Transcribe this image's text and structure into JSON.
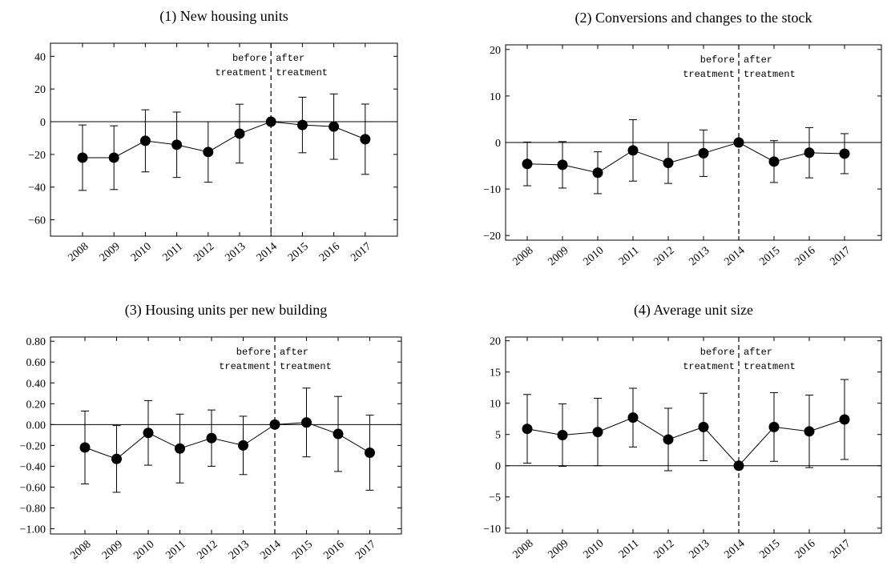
{
  "chart_data": [
    {
      "type": "line",
      "title": "(1) New housing units",
      "categories": [
        "2008",
        "2009",
        "2010",
        "2011",
        "2012",
        "2013",
        "2014",
        "2015",
        "2016",
        "2017"
      ],
      "values": [
        -22,
        -22,
        -11.7,
        -14.1,
        -18.5,
        -7.3,
        0,
        -2,
        -3,
        -10.7
      ],
      "errors": [
        20,
        19.5,
        19,
        20,
        18.5,
        18,
        0,
        17,
        20,
        21.5
      ],
      "ylim": [
        -70,
        48
      ],
      "yticks": [
        {
          "value": -60,
          "label": "−60"
        },
        {
          "value": -40,
          "label": "−40"
        },
        {
          "value": -20,
          "label": "−20"
        },
        0,
        20,
        40
      ],
      "hline": 0,
      "vline": "2014",
      "annotations": {
        "before": [
          "before",
          "treatment"
        ],
        "after": [
          "after",
          "treatment"
        ]
      },
      "color": "#000000"
    },
    {
      "type": "line",
      "title": "(2) Conversions and changes to the stock",
      "categories": [
        "2008",
        "2009",
        "2010",
        "2011",
        "2012",
        "2013",
        "2014",
        "2015",
        "2016",
        "2017"
      ],
      "values": [
        -4.6,
        -4.8,
        -6.5,
        -1.7,
        -4.4,
        -2.3,
        0,
        -4.1,
        -2.2,
        -2.4
      ],
      "errors": [
        4.7,
        5,
        4.5,
        6.6,
        4.4,
        5,
        0,
        4.5,
        5.4,
        4.3
      ],
      "ylim": [
        -21,
        21
      ],
      "yticks": [
        {
          "value": -20,
          "label": "−20"
        },
        {
          "value": -10,
          "label": "−10"
        },
        0,
        10,
        20
      ],
      "hline": 0,
      "vline": "2014",
      "annotations": {
        "before": [
          "before",
          "treatment"
        ],
        "after": [
          "after",
          "treatment"
        ]
      },
      "color": "#000000"
    },
    {
      "type": "line",
      "title": "(3) Housing units per new building",
      "categories": [
        "2008",
        "2009",
        "2010",
        "2011",
        "2012",
        "2013",
        "2014",
        "2015",
        "2016",
        "2017"
      ],
      "values": [
        -0.22,
        -0.33,
        -0.08,
        -0.23,
        -0.13,
        -0.2,
        0,
        0.02,
        -0.09,
        -0.27
      ],
      "errors": [
        0.35,
        0.32,
        0.31,
        0.33,
        0.27,
        0.28,
        0,
        0.33,
        0.36,
        0.36
      ],
      "ylim": [
        -1.05,
        0.84
      ],
      "yticks": [
        {
          "value": -1,
          "label": "−1.00"
        },
        {
          "value": -0.8,
          "label": "−0.80"
        },
        {
          "value": -0.6,
          "label": "−0.60"
        },
        {
          "value": -0.4,
          "label": "−0.40"
        },
        {
          "value": -0.2,
          "label": "−0.20"
        },
        {
          "value": 0,
          "label": "0.00"
        },
        {
          "value": 0.2,
          "label": "0.20"
        },
        {
          "value": 0.4,
          "label": "0.40"
        },
        {
          "value": 0.6,
          "label": "0.60"
        },
        {
          "value": 0.8,
          "label": "0.80"
        }
      ],
      "hline": 0,
      "vline": "2014",
      "annotations": {
        "before": [
          "before",
          "treatment"
        ],
        "after": [
          "after",
          "treatment"
        ]
      },
      "color": "#000000"
    },
    {
      "type": "line",
      "title": "(4) Average unit size",
      "categories": [
        "2008",
        "2009",
        "2010",
        "2011",
        "2012",
        "2013",
        "2014",
        "2015",
        "2016",
        "2017"
      ],
      "values": [
        5.9,
        4.9,
        5.4,
        7.7,
        4.2,
        6.2,
        0,
        6.2,
        5.5,
        7.4
      ],
      "errors": [
        5.5,
        5,
        5.4,
        4.7,
        5,
        5.4,
        0,
        5.5,
        5.8,
        6.4
      ],
      "ylim": [
        -10.8,
        20.6
      ],
      "yticks": [
        {
          "value": -10,
          "label": "−10"
        },
        {
          "value": -5,
          "label": "−5"
        },
        0,
        5,
        10,
        15,
        20
      ],
      "hline": 0,
      "vline": "2014",
      "annotations": {
        "before": [
          "before",
          "treatment"
        ],
        "after": [
          "after",
          "treatment"
        ]
      },
      "color": "#000000"
    }
  ]
}
